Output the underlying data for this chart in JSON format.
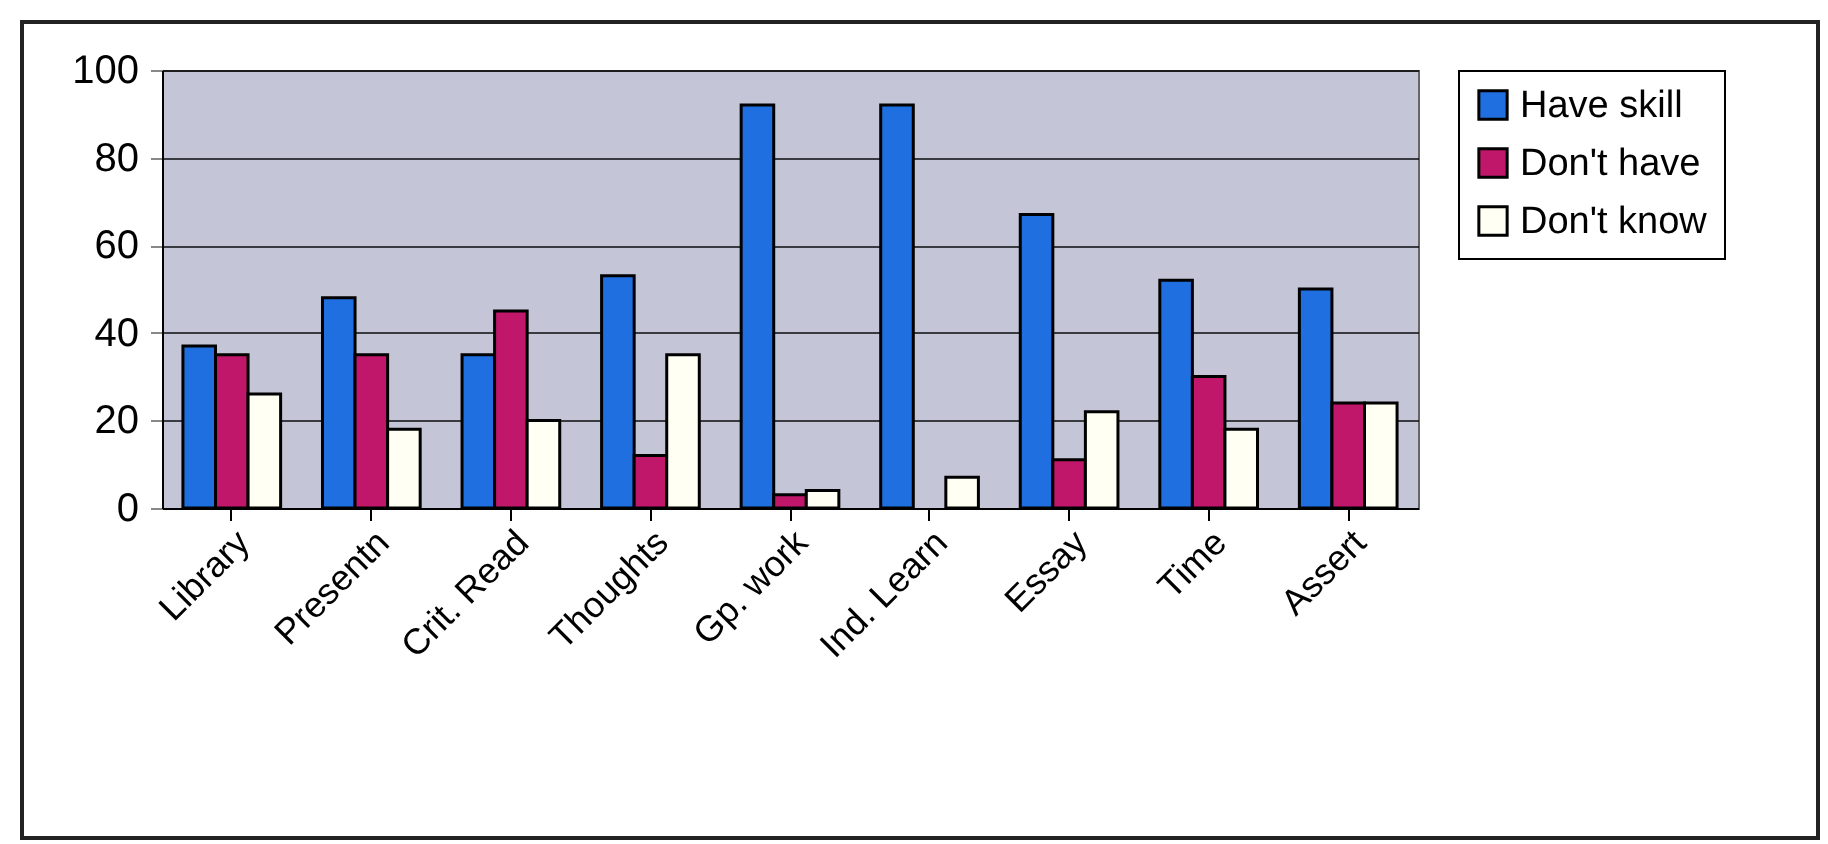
{
  "chart_data": {
    "type": "bar",
    "categories": [
      "Library",
      "Presentn",
      "Crit. Read",
      "Thoughts",
      "Gp. work",
      "Ind. Learn",
      "Essay",
      "Time",
      "Assert"
    ],
    "series": [
      {
        "name": "Have skill",
        "color": "#1f6fe0",
        "values": [
          37,
          48,
          35,
          53,
          92,
          92,
          67,
          52,
          50
        ]
      },
      {
        "name": "Don't have",
        "color": "#c0176a",
        "values": [
          35,
          35,
          45,
          12,
          3,
          null,
          11,
          30,
          24
        ]
      },
      {
        "name": "Don't know",
        "color": "#fffff4",
        "values": [
          26,
          18,
          20,
          35,
          4,
          7,
          22,
          18,
          24
        ]
      }
    ],
    "ylim": [
      0,
      100
    ],
    "yticks": [
      0,
      20,
      40,
      60,
      80,
      100
    ],
    "grid": "y",
    "legend": "right"
  }
}
